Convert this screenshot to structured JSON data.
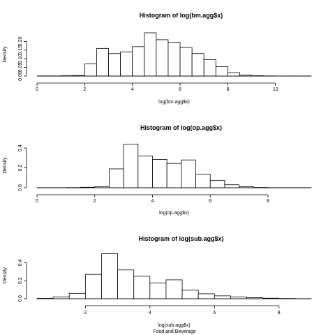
{
  "caption": "Food and Beverage",
  "chart_data": [
    {
      "type": "bar",
      "title": "Histogram of log(bm.agg$x)",
      "xlabel": "log(bm.agg$x)",
      "ylabel": "Density",
      "xlim": [
        0,
        11.5
      ],
      "ylim": [
        0,
        0.25
      ],
      "xticks": [
        0,
        2,
        4,
        6,
        8,
        10
      ],
      "xtick_labels": [
        "0",
        "2",
        "4",
        "6",
        "8",
        "10"
      ],
      "yticks": [
        0,
        0.05,
        0.1,
        0.15,
        0.2
      ],
      "ytick_labels": [
        "0.00",
        "0.05",
        "0.10",
        "0.15",
        "0.20"
      ],
      "bin_edges": [
        0,
        0.5,
        1,
        1.5,
        2,
        2.5,
        3,
        3.5,
        4,
        4.5,
        5,
        5.5,
        6,
        6.5,
        7,
        7.5,
        8,
        8.5,
        9,
        9.5,
        10,
        10.5,
        11,
        11.5
      ],
      "values": [
        0.001,
        0.001,
        0.002,
        0.003,
        0.07,
        0.16,
        0.13,
        0.14,
        0.17,
        0.25,
        0.21,
        0.195,
        0.165,
        0.13,
        0.095,
        0.055,
        0.02,
        0.006,
        0.002,
        0.001,
        0.0005,
        0.0005,
        0.0005
      ]
    },
    {
      "type": "bar",
      "title": "Histogram of log(op.agg$x)",
      "xlabel": "log(op.agg$x)",
      "ylabel": "Density",
      "xlim": [
        0,
        9.5
      ],
      "ylim": [
        0,
        0.45
      ],
      "xticks": [
        0,
        2,
        4,
        6,
        8
      ],
      "xtick_labels": [
        "0",
        "2",
        "4",
        "6",
        "8"
      ],
      "yticks": [
        0,
        0.2,
        0.4
      ],
      "ytick_labels": [
        "0.0",
        "0.2",
        "0.4"
      ],
      "bin_edges": [
        0,
        0.5,
        1,
        1.5,
        2,
        2.5,
        3,
        3.5,
        4,
        4.5,
        5,
        5.5,
        6,
        6.5,
        7,
        7.5,
        8,
        8.5,
        9,
        9.5
      ],
      "values": [
        0.001,
        0.001,
        0.002,
        0.005,
        0.012,
        0.19,
        0.44,
        0.32,
        0.285,
        0.245,
        0.28,
        0.135,
        0.075,
        0.03,
        0.01,
        0.003,
        0.001,
        0.001,
        0.001
      ]
    },
    {
      "type": "bar",
      "title": "Histogram of log(sub.agg$x)",
      "xlabel": "log(sub.agg$x)",
      "ylabel": "Density",
      "xlim": [
        0.5,
        9
      ],
      "ylim": [
        0,
        0.52
      ],
      "xticks": [
        2,
        4,
        6,
        8
      ],
      "xtick_labels": [
        "2",
        "4",
        "6",
        "8"
      ],
      "yticks": [
        0,
        0.2,
        0.4
      ],
      "ytick_labels": [
        "0.0",
        "0.2",
        "0.4"
      ],
      "bin_edges": [
        0.5,
        1,
        1.5,
        2,
        2.5,
        3,
        3.5,
        4,
        4.5,
        5,
        5.5,
        6,
        6.5,
        7,
        7.5,
        8,
        8.5,
        9
      ],
      "values": [
        0.004,
        0.02,
        0.06,
        0.27,
        0.5,
        0.32,
        0.25,
        0.175,
        0.21,
        0.095,
        0.055,
        0.032,
        0.02,
        0.012,
        0.006,
        0.003,
        0.001
      ]
    }
  ]
}
